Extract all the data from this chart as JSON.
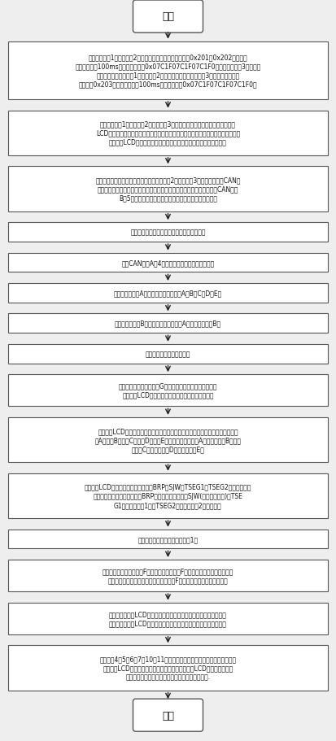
{
  "title": "开始",
  "end": "结束",
  "bg_color": "#eeeeee",
  "box_color": "#ffffff",
  "border_color": "#555555",
  "text_color": "#111111",
  "arrow_color": "#222222",
  "steps": [
    "设定第一节点1和第二节点2为发送节点，分别发送标识符为0x201和0x202的报文，\n发送同期均为100ms，数据内容均为0x07C1F07C1F07C1F0；设定第三节点3为接收节\n点；或者设定第一节点1和第二节点2为接收节点，设定第三节点3为发送节点，发送\n标识符为0x203的报文，周期为100ms，数据内容为0x07C1F07C1F07C1F0；",
    "设定第一节点1、第二节点2和第三节点3成功发送或接收报文时，则输出给各自\nLCD显示单元的内容为「发送成功」或「接收成功」，一旦发送或接收失败，则将给\n出给各自LCD显示单元的内容锁定为「发送失败」或「接收失败」；",
    "根据当前实际的网络参数配置，配置第二节点2和第三节点3振荡器的容差、CAN控\n制器位定时参数、收发器的型号、共模电感的型号、终端电阰的阱值以及CAN总线\nB段5的参数（包括线束的长度、特征阱抗、传输延时）；",
    "选择一定容差的振荡器插入第一振荡器插座；",
    "设置CAN总线A捥4的长度、特征阱抗及传输延时；",
    "通过第一连接线A选择使用第一共模电感A、B、C、D、E；",
    "通过第一连接线B选择使用第一终端电阰A、第一终端电阰B；",
    "启动检测系统，上电准备；",
    "通过按下第一键盘按键「G」，使第一节点进入编辑模式，\n此时第一LCD显示单元背景显示用户需设置的参数；",
    "根据第一LCD显示单元显示的「请输入收发器型号」提示，通过按下第一键盘按键\n「A」、「B」、「C」、「D」或「E」，选择第一收发器A、第一收发器B、第一\n收发器C、第一收发器D或第一收发器E；",
    "根据第一LCD显示单元显示的「请输入BRP、SJW、TSEG1、TSEG2」提示，通过\n第一键盘数字键依次设置参数BRP（波特率预设值）、SJW(同步跳转宽度)、TSE\nG1（相位缓冲捘1）、TSEG2（相位缓冲捘2）的数值；",
    "通过第一复位按鈕复位第一节点1；",
    "通过按下第一键盘按键「F」与第二键盘按键「F」，启动第一节点和第二节点\n发送报文，或者通过按下第二键盘按键「F」，启动第二节点发送报文；",
    "发送节点通过其LCD显示单元显示「发送成功」或者「发送失败」，\n接收节点通过其LCD显示单元显示「接收成功」或者「接收失败」；",
    "改变步陶4、5、6、7、10、11中任一参数的设置，重复以上步骤，通过发\n送节点的LCD显示单元显示的发送情况及接收节点的LCD显示单元显示的\n接收情况，即可检测出该参数改变后对通信的影响."
  ]
}
